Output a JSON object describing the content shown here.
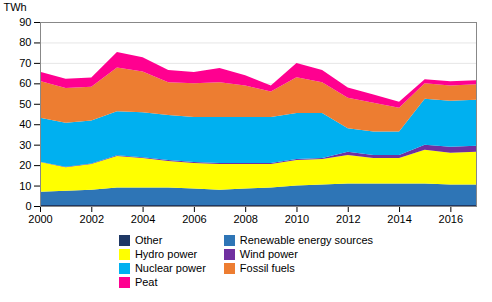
{
  "chart_data": {
    "type": "area",
    "stacked": true,
    "x": [
      2000,
      2001,
      2002,
      2003,
      2004,
      2005,
      2006,
      2007,
      2008,
      2009,
      2010,
      2011,
      2012,
      2013,
      2014,
      2015,
      2016,
      2017
    ],
    "series": [
      {
        "name": "Other",
        "color": "#1F3864",
        "values": [
          0.5,
          0.5,
          0.5,
          0.5,
          0.5,
          0.5,
          0.5,
          0.5,
          0.5,
          0.5,
          0.5,
          0.5,
          0.5,
          0.5,
          0.5,
          0.5,
          0.5,
          0.5
        ]
      },
      {
        "name": "Renewable energy sources",
        "color": "#2E75B6",
        "values": [
          6.5,
          7.0,
          7.5,
          8.5,
          8.5,
          8.5,
          8.0,
          7.5,
          8.0,
          8.5,
          9.5,
          10.0,
          10.5,
          10.5,
          10.5,
          10.5,
          10.0,
          10.0
        ]
      },
      {
        "name": "Hydro power",
        "color": "#FFFF00",
        "values": [
          14.5,
          11.5,
          12.5,
          15.5,
          14.5,
          13.0,
          12.5,
          12.5,
          12.0,
          11.5,
          12.5,
          12.5,
          14.0,
          12.5,
          12.5,
          16.5,
          15.5,
          16.0
        ]
      },
      {
        "name": "Wind power",
        "color": "#7030A0",
        "values": [
          0.2,
          0.2,
          0.3,
          0.3,
          0.3,
          0.5,
          0.5,
          0.5,
          0.5,
          0.5,
          0.5,
          0.5,
          1.5,
          1.5,
          1.5,
          2.5,
          3.0,
          3.0
        ]
      },
      {
        "name": "Nuclear power",
        "color": "#00B0F0",
        "values": [
          21.5,
          21.5,
          21.0,
          21.5,
          22.0,
          22.0,
          22.0,
          22.5,
          22.5,
          22.5,
          22.5,
          22.0,
          11.5,
          11.5,
          11.5,
          22.5,
          22.5,
          22.5
        ]
      },
      {
        "name": "Fossil fuels",
        "color": "#ED7D31",
        "values": [
          18.0,
          17.0,
          16.5,
          21.5,
          20.0,
          16.0,
          16.5,
          17.0,
          15.5,
          12.5,
          17.5,
          15.0,
          15.0,
          14.0,
          11.5,
          7.5,
          7.5,
          7.5
        ]
      },
      {
        "name": "Peat",
        "color": "#FF0090",
        "values": [
          4.5,
          4.5,
          4.5,
          7.5,
          7.0,
          6.0,
          5.5,
          7.0,
          5.0,
          3.0,
          7.0,
          6.0,
          5.0,
          4.0,
          3.0,
          2.0,
          2.0,
          2.0
        ]
      }
    ],
    "ylabel": "TWh",
    "xlim": [
      2000,
      2017
    ],
    "xticks": [
      2000,
      2002,
      2004,
      2006,
      2008,
      2010,
      2012,
      2014,
      2016
    ],
    "ylim": [
      0,
      90
    ],
    "yticks": [
      0,
      10,
      20,
      30,
      40,
      50,
      60,
      70,
      80,
      90
    ],
    "grid": true,
    "legend": "bottom"
  }
}
